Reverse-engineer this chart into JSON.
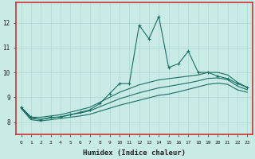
{
  "title": "",
  "xlabel": "Humidex (Indice chaleur)",
  "ylabel": "",
  "xlim": [
    -0.5,
    23.5
  ],
  "ylim": [
    7.5,
    12.8
  ],
  "yticks": [
    8,
    9,
    10,
    11,
    12
  ],
  "xticks": [
    0,
    1,
    2,
    3,
    4,
    5,
    6,
    7,
    8,
    9,
    10,
    11,
    12,
    13,
    14,
    15,
    16,
    17,
    18,
    19,
    20,
    21,
    22,
    23
  ],
  "bg_color": "#c8ebe6",
  "grid_color": "#b0d8d2",
  "line_color": "#1a6e62",
  "border_color": "#cc3333",
  "series": {
    "main": {
      "x": [
        0,
        1,
        2,
        3,
        4,
        5,
        6,
        7,
        8,
        9,
        10,
        11,
        12,
        13,
        14,
        15,
        16,
        17,
        18,
        19,
        20,
        21,
        22,
        23
      ],
      "y": [
        8.6,
        8.2,
        8.1,
        8.2,
        8.2,
        8.3,
        8.4,
        8.5,
        8.75,
        9.15,
        9.55,
        9.55,
        11.9,
        11.35,
        12.25,
        10.2,
        10.35,
        10.85,
        10.0,
        10.0,
        9.85,
        9.75,
        9.55,
        9.4
      ]
    },
    "upper": {
      "x": [
        0,
        1,
        2,
        3,
        4,
        5,
        6,
        7,
        8,
        9,
        10,
        11,
        12,
        13,
        14,
        15,
        16,
        17,
        18,
        19,
        20,
        21,
        22,
        23
      ],
      "y": [
        8.6,
        8.2,
        8.2,
        8.25,
        8.3,
        8.4,
        8.5,
        8.6,
        8.8,
        9.0,
        9.2,
        9.35,
        9.5,
        9.6,
        9.7,
        9.75,
        9.8,
        9.85,
        9.9,
        10.0,
        10.0,
        9.9,
        9.6,
        9.4
      ]
    },
    "lower": {
      "x": [
        0,
        1,
        2,
        3,
        4,
        5,
        6,
        7,
        8,
        9,
        10,
        11,
        12,
        13,
        14,
        15,
        16,
        17,
        18,
        19,
        20,
        21,
        22,
        23
      ],
      "y": [
        8.55,
        8.1,
        8.05,
        8.1,
        8.15,
        8.2,
        8.25,
        8.32,
        8.44,
        8.56,
        8.68,
        8.78,
        8.88,
        8.98,
        9.08,
        9.13,
        9.22,
        9.32,
        9.42,
        9.52,
        9.57,
        9.52,
        9.3,
        9.2
      ]
    },
    "mid": {
      "x": [
        0,
        1,
        2,
        3,
        4,
        5,
        6,
        7,
        8,
        9,
        10,
        11,
        12,
        13,
        14,
        15,
        16,
        17,
        18,
        19,
        20,
        21,
        22,
        23
      ],
      "y": [
        8.57,
        8.15,
        8.12,
        8.17,
        8.22,
        8.3,
        8.37,
        8.46,
        8.62,
        8.78,
        8.94,
        9.06,
        9.18,
        9.28,
        9.38,
        9.44,
        9.51,
        9.58,
        9.66,
        9.76,
        9.78,
        9.71,
        9.45,
        9.3
      ]
    }
  },
  "figsize": [
    3.2,
    2.0
  ],
  "dpi": 100
}
